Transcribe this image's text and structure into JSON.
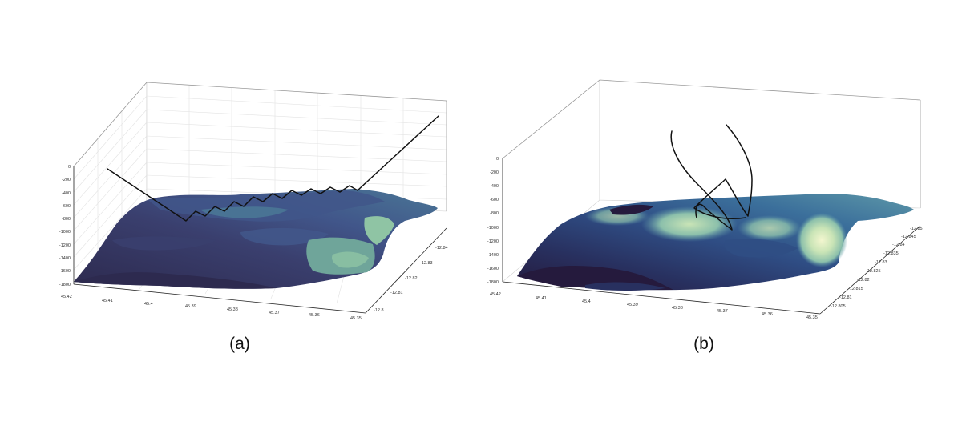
{
  "chart_data": [
    {
      "type": "surface3d",
      "caption": "(a)",
      "zticks": [
        "0",
        "-200",
        "-400",
        "-600",
        "-800",
        "-1000",
        "-1200",
        "-1400",
        "-1600",
        "-1800"
      ],
      "xticks": [
        "45.42",
        "45.41",
        "45.4",
        "45.39",
        "45.38",
        "45.37",
        "45.36",
        "45.35"
      ],
      "yticks": [
        "-12.8",
        "-12.81",
        "-12.82",
        "-12.83",
        "-12.84"
      ],
      "zlim": [
        -1800,
        0
      ],
      "grid": true,
      "colormap": [
        "#2d2a4f",
        "#3a3f6e",
        "#41568a",
        "#4a7796",
        "#6fa59a",
        "#8fc4a4"
      ],
      "track": "zigzag"
    },
    {
      "type": "surface3d",
      "caption": "(b)",
      "zticks": [
        "0",
        "-200",
        "-400",
        "-600",
        "-800",
        "-1000",
        "-1200",
        "-1400",
        "-1600",
        "-1800"
      ],
      "xticks": [
        "45.42",
        "45.41",
        "45.4",
        "45.39",
        "45.38",
        "45.37",
        "45.36",
        "45.35"
      ],
      "yticks": [
        "-12.805",
        "-12.81",
        "-12.815",
        "-12.82",
        "-12.825",
        "-12.83",
        "-12.835",
        "-12.84",
        "-12.845",
        "-12.85"
      ],
      "zlim": [
        -1800,
        0
      ],
      "grid": false,
      "colormap": [
        "#251a3d",
        "#28305f",
        "#2f4d84",
        "#3b6f9b",
        "#5d98a8",
        "#8cc0ab",
        "#c9e4b6",
        "#f3f6cf"
      ],
      "track": "loops"
    }
  ]
}
